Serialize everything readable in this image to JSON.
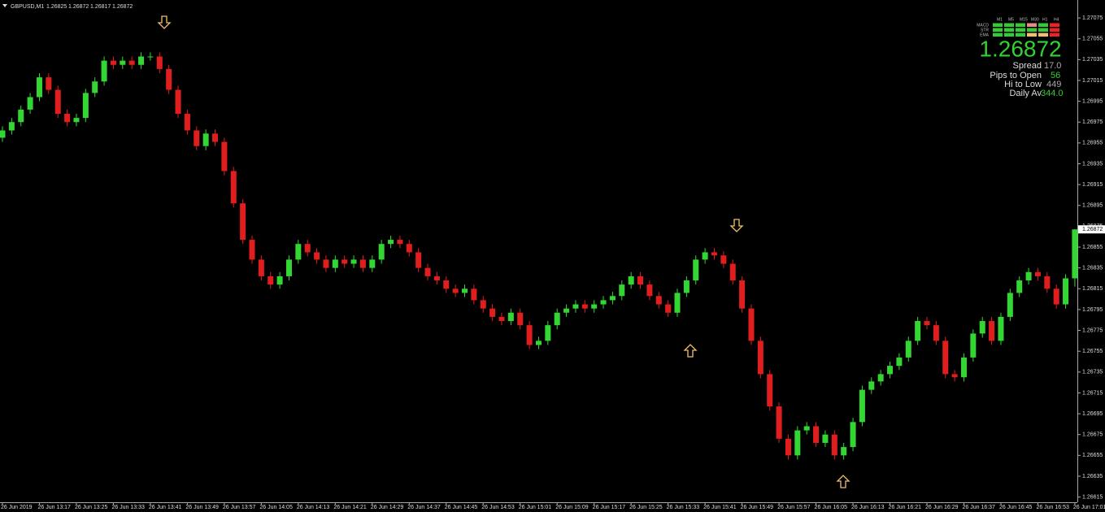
{
  "chart_data": {
    "type": "candlestick",
    "title": "GBPUSD,M1",
    "x": [
      "26 Jun 2019",
      null,
      null,
      null,
      "26 Jun 13:17",
      null,
      null,
      null,
      "26 Jun 13:25",
      null,
      null,
      null,
      "26 Jun 13:33",
      null,
      null,
      null,
      "26 Jun 13:41",
      null,
      null,
      null,
      "26 Jun 13:49",
      null,
      null,
      null,
      "26 Jun 13:57",
      null,
      null,
      null,
      "26 Jun 14:05",
      null,
      null,
      null,
      "26 Jun 14:13",
      null,
      null,
      null,
      "26 Jun 14:21",
      null,
      null,
      null,
      "26 Jun 14:29",
      null,
      null,
      null,
      "26 Jun 14:37",
      null,
      null,
      null,
      "26 Jun 14:45",
      null,
      null,
      null,
      "26 Jun 14:53",
      null,
      null,
      null,
      "26 Jun 15:01",
      null,
      null,
      null,
      "26 Jun 15:09",
      null,
      null,
      null,
      "26 Jun 15:17",
      null,
      null,
      null,
      "26 Jun 15:25",
      null,
      null,
      null,
      "26 Jun 15:33",
      null,
      null,
      null,
      "26 Jun 15:41",
      null,
      null,
      null,
      "26 Jun 15:49",
      null,
      null,
      null,
      "26 Jun 15:57",
      null,
      null,
      null,
      "26 Jun 16:05",
      null,
      null,
      null,
      "26 Jun 16:13",
      null,
      null,
      null,
      "26 Jun 16:21",
      null,
      null,
      null,
      "26 Jun 16:29",
      null,
      null,
      null,
      "26 Jun 16:37",
      null,
      null,
      null,
      "26 Jun 16:45",
      null,
      null,
      null,
      "26 Jun 16:53",
      null,
      null,
      null,
      "26 Jun 17:01"
    ],
    "open": [
      1.2696,
      1.26967,
      1.26975,
      1.26987,
      1.26999,
      1.27018,
      1.27006,
      1.26983,
      1.26975,
      1.26979,
      1.27003,
      1.27014,
      1.27034,
      1.2703,
      1.27034,
      1.2703,
      1.27038,
      1.27038,
      1.27026,
      1.27006,
      1.26983,
      1.26967,
      1.26952,
      1.26964,
      1.26956,
      1.26928,
      1.26897,
      1.26862,
      1.26843,
      1.26827,
      1.26819,
      1.26827,
      1.26843,
      1.26858,
      1.2685,
      1.26843,
      1.26835,
      1.26843,
      1.26839,
      1.26843,
      1.26835,
      1.26843,
      1.26858,
      1.26862,
      1.26858,
      1.2685,
      1.26835,
      1.26827,
      1.26823,
      1.26815,
      1.26811,
      1.26815,
      1.26804,
      1.26796,
      1.26788,
      1.26784,
      1.26792,
      1.2678,
      1.26761,
      1.26765,
      1.2678,
      1.26792,
      1.26796,
      1.268,
      1.26796,
      1.268,
      1.26804,
      1.26808,
      1.26819,
      1.26827,
      1.26819,
      1.26808,
      1.268,
      1.26792,
      1.26811,
      1.26823,
      1.26843,
      1.2685,
      1.26847,
      1.26839,
      1.26823,
      1.26796,
      1.26765,
      1.26733,
      1.26702,
      1.26671,
      1.26655,
      1.26679,
      1.26683,
      1.26667,
      1.26675,
      1.26655,
      1.26663,
      1.26687,
      1.26718,
      1.26726,
      1.26733,
      1.26741,
      1.26749,
      1.26765,
      1.26784,
      1.2678,
      1.26765,
      1.26733,
      1.2673,
      1.26749,
      1.26772,
      1.26784,
      1.26765,
      1.26788,
      1.26811,
      1.26823,
      1.26831,
      1.26827,
      1.26815,
      1.268,
      1.26825
    ],
    "high": [
      1.26971,
      1.26979,
      1.26991,
      1.27003,
      1.27022,
      1.27022,
      1.2701,
      1.26987,
      1.26983,
      1.27007,
      1.27018,
      1.27038,
      1.27038,
      1.27038,
      1.27038,
      1.27042,
      1.27042,
      1.27042,
      1.2703,
      1.2701,
      1.26987,
      1.26971,
      1.26968,
      1.26968,
      1.2696,
      1.26932,
      1.26901,
      1.26866,
      1.26847,
      1.26831,
      1.26831,
      1.26847,
      1.26862,
      1.26862,
      1.26854,
      1.26847,
      1.26847,
      1.26847,
      1.26847,
      1.26847,
      1.26847,
      1.26862,
      1.26866,
      1.26866,
      1.26862,
      1.26854,
      1.26839,
      1.26831,
      1.26827,
      1.26819,
      1.26819,
      1.26819,
      1.26808,
      1.268,
      1.26792,
      1.26796,
      1.26796,
      1.26784,
      1.26769,
      1.26784,
      1.26796,
      1.268,
      1.26804,
      1.26804,
      1.26804,
      1.26808,
      1.26812,
      1.26823,
      1.26831,
      1.26831,
      1.26823,
      1.26812,
      1.26804,
      1.26815,
      1.26827,
      1.26847,
      1.26854,
      1.26854,
      1.26851,
      1.26843,
      1.26827,
      1.268,
      1.26769,
      1.26737,
      1.26706,
      1.26675,
      1.26683,
      1.26687,
      1.26687,
      1.26679,
      1.26679,
      1.26667,
      1.26691,
      1.26722,
      1.2673,
      1.26737,
      1.26745,
      1.26753,
      1.26769,
      1.26788,
      1.26788,
      1.26784,
      1.26769,
      1.26737,
      1.26753,
      1.26776,
      1.26788,
      1.26788,
      1.26792,
      1.26815,
      1.26827,
      1.26835,
      1.26835,
      1.26831,
      1.26819,
      1.26829,
      1.26872
    ],
    "low": [
      1.26956,
      1.26963,
      1.26971,
      1.26983,
      1.26995,
      1.27002,
      1.26979,
      1.26971,
      1.26971,
      1.26975,
      1.26999,
      1.2701,
      1.27026,
      1.27026,
      1.27026,
      1.27026,
      1.27034,
      1.27022,
      1.27002,
      1.26979,
      1.26963,
      1.26948,
      1.26948,
      1.26952,
      1.26924,
      1.26893,
      1.26858,
      1.26839,
      1.26823,
      1.26815,
      1.26815,
      1.26823,
      1.26839,
      1.26846,
      1.26839,
      1.26831,
      1.26831,
      1.26835,
      1.26835,
      1.26831,
      1.26831,
      1.26839,
      1.26854,
      1.26854,
      1.26846,
      1.26831,
      1.26823,
      1.26819,
      1.26811,
      1.26807,
      1.26807,
      1.268,
      1.26792,
      1.26784,
      1.2678,
      1.2678,
      1.26776,
      1.26757,
      1.26757,
      1.26761,
      1.26776,
      1.26788,
      1.26792,
      1.26792,
      1.26792,
      1.26796,
      1.268,
      1.26804,
      1.26815,
      1.26815,
      1.26804,
      1.26796,
      1.26788,
      1.26788,
      1.26807,
      1.26819,
      1.26839,
      1.26843,
      1.26835,
      1.26819,
      1.26792,
      1.26761,
      1.26729,
      1.26698,
      1.26667,
      1.26651,
      1.26651,
      1.26675,
      1.26663,
      1.26663,
      1.26651,
      1.26651,
      1.26659,
      1.26683,
      1.26714,
      1.26722,
      1.26729,
      1.26737,
      1.26745,
      1.26761,
      1.26776,
      1.26761,
      1.26729,
      1.26726,
      1.26726,
      1.26745,
      1.26768,
      1.26761,
      1.26761,
      1.26784,
      1.26807,
      1.26819,
      1.26823,
      1.26811,
      1.26796,
      1.26796,
      1.26817
    ],
    "close": [
      1.26967,
      1.26975,
      1.26987,
      1.26999,
      1.27018,
      1.27006,
      1.26983,
      1.26975,
      1.26979,
      1.27003,
      1.27014,
      1.27034,
      1.2703,
      1.27034,
      1.2703,
      1.27038,
      1.27038,
      1.27026,
      1.27006,
      1.26983,
      1.26967,
      1.26952,
      1.26964,
      1.26956,
      1.26928,
      1.26897,
      1.26862,
      1.26843,
      1.26827,
      1.26819,
      1.26827,
      1.26843,
      1.26858,
      1.2685,
      1.26843,
      1.26835,
      1.26843,
      1.26839,
      1.26843,
      1.26835,
      1.26843,
      1.26858,
      1.26862,
      1.26858,
      1.2685,
      1.26835,
      1.26827,
      1.26823,
      1.26815,
      1.26811,
      1.26815,
      1.26804,
      1.26796,
      1.26788,
      1.26784,
      1.26792,
      1.2678,
      1.26761,
      1.26765,
      1.2678,
      1.26792,
      1.26796,
      1.268,
      1.26796,
      1.268,
      1.26804,
      1.26808,
      1.26819,
      1.26827,
      1.26819,
      1.26808,
      1.268,
      1.26792,
      1.26811,
      1.26823,
      1.26843,
      1.2685,
      1.26847,
      1.26839,
      1.26823,
      1.26796,
      1.26765,
      1.26733,
      1.26702,
      1.26671,
      1.26655,
      1.26679,
      1.26683,
      1.26667,
      1.26675,
      1.26655,
      1.26663,
      1.26687,
      1.26718,
      1.26726,
      1.26733,
      1.26741,
      1.26749,
      1.26765,
      1.26784,
      1.2678,
      1.26765,
      1.26733,
      1.2673,
      1.26749,
      1.26772,
      1.26784,
      1.26765,
      1.26788,
      1.26811,
      1.26823,
      1.26831,
      1.26827,
      1.26815,
      1.268,
      1.26825,
      1.26872
    ],
    "up_color": "#33d633",
    "down_color": "#e01e1e",
    "ylim": [
      1.2661,
      1.27086
    ],
    "yticks": [
      1.26615,
      1.26635,
      1.26655,
      1.26675,
      1.26695,
      1.26715,
      1.26735,
      1.26755,
      1.26775,
      1.26795,
      1.26815,
      1.26835,
      1.26855,
      1.26875,
      1.26895,
      1.26915,
      1.26935,
      1.26955,
      1.26975,
      1.26995,
      1.27015,
      1.27035,
      1.27055,
      1.27075
    ]
  },
  "panel": {
    "timeframes": [
      "M1",
      "M5",
      "M15",
      "M30",
      "H1",
      "H4"
    ],
    "indicators": [
      "MACD",
      "STR",
      "EMA"
    ],
    "signals": [
      [
        "#3c3",
        "#3c3",
        "#3c3",
        "#e88",
        "#3c3",
        "#e22"
      ],
      [
        "#3c3",
        "#3c3",
        "#3c3",
        "#3c3",
        "#3c3",
        "#e22"
      ],
      [
        "#3c3",
        "#3c3",
        "#3c3",
        "#eec070",
        "#eec070",
        "#e22"
      ]
    ],
    "spread_label": "Spread",
    "spread_value": "17.0",
    "pips_label": "Pips to Open",
    "pips_value": "56",
    "range_label": "Hi to Low",
    "range_value": "449",
    "daily_label": "Daily Av",
    "daily_value": "344.0"
  }
}
